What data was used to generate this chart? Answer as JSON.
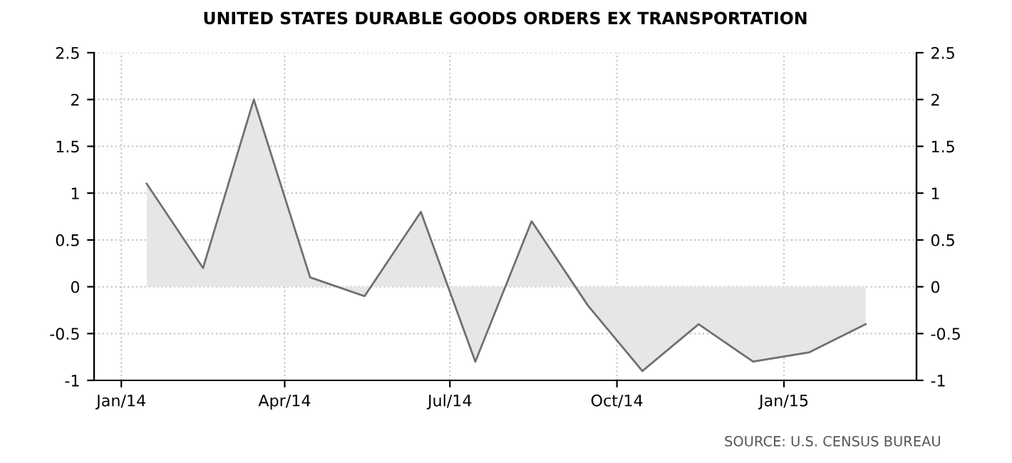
{
  "chart_data": {
    "type": "area",
    "title": "UNITED STATES DURABLE GOODS ORDERS EX TRANSPORTATION",
    "x": [
      "2014-01-15",
      "2014-02-15",
      "2014-03-15",
      "2014-04-15",
      "2014-05-15",
      "2014-06-15",
      "2014-07-15",
      "2014-08-15",
      "2014-09-15",
      "2014-10-15",
      "2014-11-15",
      "2014-12-15",
      "2015-01-15",
      "2015-02-15"
    ],
    "series": [
      {
        "color": "#707070",
        "values": [
          1.1,
          0.2,
          2.0,
          0.1,
          -0.1,
          0.8,
          -0.8,
          0.7,
          -0.2,
          -0.9,
          -0.4,
          -0.8,
          -0.7,
          -0.4
        ]
      }
    ],
    "xlim": [
      "2013-12-17",
      "2015-03-15"
    ],
    "xticks": [
      {
        "value": "2014-01-01",
        "label": "Jan/14"
      },
      {
        "value": "2014-04-01",
        "label": "Apr/14"
      },
      {
        "value": "2014-07-01",
        "label": "Jul/14"
      },
      {
        "value": "2014-10-01",
        "label": "Oct/14"
      },
      {
        "value": "2015-01-01",
        "label": "Jan/15"
      }
    ],
    "ylim": [
      -1,
      2.5
    ],
    "yticks": [
      -1,
      -0.5,
      0,
      0.5,
      1,
      1.5,
      2,
      2.5
    ],
    "y2lim": [
      -1,
      2.5
    ],
    "y2ticks": [
      -1,
      -0.5,
      0,
      0.5,
      1,
      1.5,
      2,
      2.5
    ],
    "grid": true,
    "annotations": [
      "SOURCE: U.S. CENSUS BUREAU"
    ]
  }
}
